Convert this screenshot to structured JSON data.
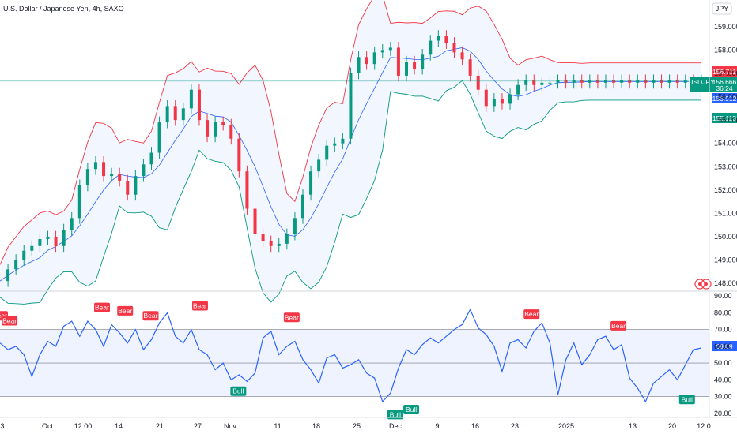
{
  "title": "U.S. Dollar / Japanese Yen, 4h, SAXO",
  "currency_button": "JPY",
  "price_tags": {
    "upper": "156.711",
    "symbol": "USDJPY",
    "last": "156.666",
    "countdown": "36:24",
    "middle": "155.912",
    "lower": "155.113"
  },
  "colors": {
    "up": "#089981",
    "down": "#f23645",
    "band_upper": "#f23645",
    "band_lower": "#089981",
    "band_basis": "#2962ff",
    "rsi_line": "#2962ff",
    "tag_blue": "#2962ff"
  },
  "chart_data": [
    {
      "type": "candlestick",
      "indicators": [
        "Bollinger Bands"
      ],
      "ylim": [
        147.7,
        159.4
      ],
      "yticks": [
        "159.000",
        "158.000",
        "157.000",
        "156.000",
        "155.000",
        "154.000",
        "153.000",
        "152.000",
        "151.000",
        "150.000",
        "149.000",
        "148.000"
      ],
      "ytick_values": [
        159,
        158,
        157,
        156,
        155,
        154,
        153,
        152,
        151,
        150,
        149,
        148
      ],
      "price_line": 156.666,
      "series": [
        {
          "name": "",
          "x": [
            0,
            10,
            20,
            30,
            40,
            50,
            60,
            70,
            80,
            90,
            100,
            110,
            120,
            130,
            140,
            150,
            160,
            170,
            180,
            190,
            200,
            210,
            220,
            230,
            240,
            250,
            260,
            270,
            280,
            290,
            300,
            310,
            320,
            330,
            340,
            350,
            360,
            370,
            380,
            390,
            400,
            410,
            420,
            430,
            440,
            450,
            460,
            470,
            480,
            490,
            500,
            510,
            520,
            530,
            540,
            550,
            560,
            570,
            580,
            590,
            600,
            610,
            620,
            630,
            640,
            650,
            660,
            670,
            680,
            690,
            700,
            710,
            720,
            730,
            740,
            750,
            760,
            770,
            780,
            790,
            800,
            810,
            820,
            830,
            840,
            850,
            860,
            870,
            880
          ],
          "close": [
            148.1,
            148.6,
            149.0,
            149.4,
            149.6,
            149.9,
            150.0,
            149.6,
            150.3,
            150.8,
            152.2,
            152.9,
            153.2,
            152.6,
            152.7,
            152.4,
            151.8,
            152.6,
            153.1,
            153.6,
            154.9,
            155.6,
            155.0,
            155.5,
            156.3,
            155.0,
            154.3,
            154.9,
            154.8,
            154.2,
            152.8,
            151.2,
            150.1,
            149.8,
            149.6,
            149.7,
            150.1,
            150.8,
            151.8,
            152.8,
            153.3,
            153.9,
            154.0,
            154.2,
            157.0,
            157.7,
            157.4,
            157.9,
            158.0,
            158.1,
            156.9,
            157.5,
            157.2,
            157.8,
            158.4,
            158.6,
            158.3,
            157.9,
            157.6,
            156.9,
            156.3,
            155.6,
            155.9,
            155.7,
            156.1,
            156.5,
            156.7,
            156.5,
            156.6,
            156.6,
            156.7,
            156.6,
            156.7,
            156.6,
            156.7,
            156.6,
            156.7,
            156.6,
            156.7,
            156.6,
            156.7,
            156.6,
            156.7,
            156.6,
            156.7,
            156.6,
            156.7,
            156.6,
            156.7
          ]
        }
      ]
    },
    {
      "type": "line",
      "indicator": "RSI",
      "ylim": [
        18,
        92
      ],
      "yticks": [
        "90.00",
        "80.00",
        "70.00",
        "60.00",
        "50.00",
        "40.00",
        "30.00",
        "20.00"
      ],
      "ytick_values": [
        90,
        80,
        70,
        60,
        50,
        40,
        30,
        20
      ],
      "band": [
        30,
        70
      ],
      "midline": 50,
      "current_value": "59.09",
      "series": [
        {
          "name": "",
          "x": [
            0,
            10,
            20,
            30,
            40,
            50,
            60,
            70,
            80,
            90,
            100,
            110,
            120,
            130,
            140,
            150,
            160,
            170,
            180,
            190,
            200,
            210,
            220,
            230,
            240,
            250,
            260,
            270,
            280,
            290,
            300,
            310,
            320,
            330,
            340,
            350,
            360,
            370,
            380,
            390,
            400,
            410,
            420,
            430,
            440,
            450,
            460,
            470,
            480,
            490,
            500,
            510,
            520,
            530,
            540,
            550,
            560,
            570,
            580,
            590,
            600,
            610,
            620,
            630,
            640,
            650,
            660,
            670,
            680,
            690,
            700,
            710,
            720,
            730,
            740,
            750,
            760,
            770,
            780,
            790,
            800,
            810,
            820,
            830,
            840,
            850,
            860,
            870,
            880
          ],
          "values": [
            62,
            58,
            60,
            55,
            42,
            55,
            63,
            60,
            72,
            75,
            66,
            75,
            70,
            60,
            73,
            68,
            62,
            70,
            58,
            64,
            74,
            80,
            66,
            62,
            70,
            58,
            55,
            46,
            50,
            40,
            43,
            39,
            44,
            65,
            69,
            55,
            60,
            63,
            52,
            46,
            38,
            53,
            55,
            47,
            49,
            52,
            44,
            41,
            27,
            32,
            47,
            58,
            55,
            61,
            65,
            62,
            66,
            70,
            73,
            82,
            71,
            67,
            60,
            45,
            62,
            64,
            59,
            69,
            74,
            62,
            31,
            52,
            62,
            49,
            55,
            64,
            66,
            58,
            61,
            41,
            35,
            27,
            38,
            42,
            46,
            40,
            49,
            58,
            59
          ]
        }
      ],
      "signals": [
        {
          "label": "Bear",
          "x": 0,
          "value": 74,
          "type": "bear"
        },
        {
          "label": "Bear",
          "x": 12,
          "value": 71,
          "type": "bear"
        },
        {
          "label": "Bear",
          "x": 128,
          "value": 79,
          "type": "bear"
        },
        {
          "label": "Bear",
          "x": 157,
          "value": 77,
          "type": "bear"
        },
        {
          "label": "Bear",
          "x": 189,
          "value": 74,
          "type": "bear"
        },
        {
          "label": "Bear",
          "x": 251,
          "value": 80,
          "type": "bear"
        },
        {
          "label": "Bear",
          "x": 366,
          "value": 73,
          "type": "bear"
        },
        {
          "label": "Bear",
          "x": 667,
          "value": 75,
          "type": "bear"
        },
        {
          "label": "Bear",
          "x": 776,
          "value": 68,
          "type": "bear"
        },
        {
          "label": "Bull",
          "x": 299,
          "value": 37,
          "type": "bull"
        },
        {
          "label": "Bull",
          "x": 496,
          "value": 23,
          "type": "bull"
        },
        {
          "label": "Bull",
          "x": 516,
          "value": 26,
          "type": "bull"
        },
        {
          "label": "Bull",
          "x": 862,
          "value": 32,
          "type": "bull"
        }
      ]
    }
  ],
  "x_axis": {
    "ticks": [
      "3",
      "Oct",
      "12:00",
      "14",
      "21",
      "27",
      "Nov",
      "11",
      "18",
      "25",
      "Dec",
      "9",
      "16",
      "23",
      "2025",
      "13",
      "20",
      "12:0"
    ]
  }
}
